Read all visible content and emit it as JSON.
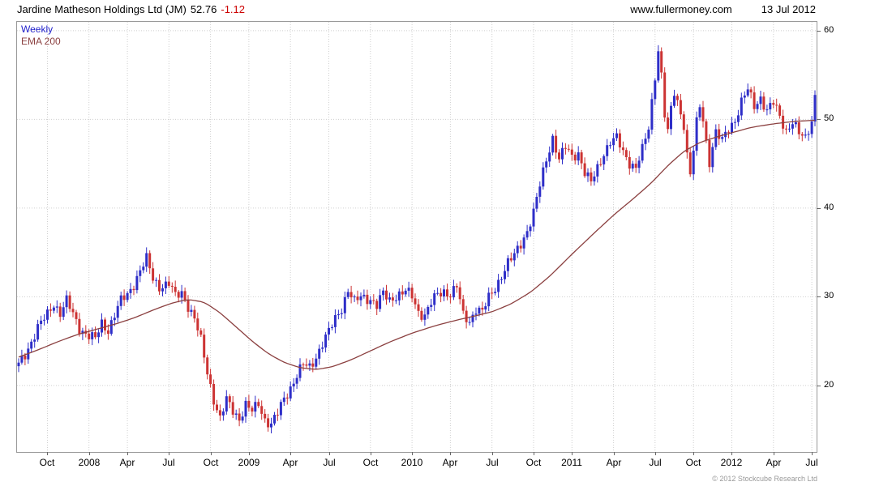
{
  "header": {
    "title": "Jardine Matheson Holdings Ltd (JM)",
    "price": "52.76",
    "change": "-1.12",
    "website": "www.fullermoney.com",
    "date": "13 Jul 2012"
  },
  "legend": {
    "timeframe": "Weekly",
    "ema": "EMA 200"
  },
  "footer": {
    "copyright": "© 2012 Stockcube Research Ltd"
  },
  "chart_data": {
    "type": "candlestick",
    "title": "Jardine Matheson Holdings Ltd (JM) weekly candlestick chart with 200-day EMA",
    "instrument": "Jardine Matheson Holdings Ltd",
    "ticker": "JM",
    "timeframe": "Weekly",
    "last_close": 52.76,
    "change": -1.12,
    "num_weeks": 250,
    "ylim": [
      12.5,
      61
    ],
    "y_ticks": [
      20,
      30,
      40,
      50,
      60
    ],
    "x_ticks": [
      {
        "label": "Oct",
        "week": 9
      },
      {
        "label": "2008",
        "week": 22
      },
      {
        "label": "Apr",
        "week": 34
      },
      {
        "label": "Jul",
        "week": 47
      },
      {
        "label": "Oct",
        "week": 60
      },
      {
        "label": "2009",
        "week": 72
      },
      {
        "label": "Apr",
        "week": 85
      },
      {
        "label": "Jul",
        "week": 97
      },
      {
        "label": "Oct",
        "week": 110
      },
      {
        "label": "2010",
        "week": 123
      },
      {
        "label": "Apr",
        "week": 135
      },
      {
        "label": "Jul",
        "week": 148
      },
      {
        "label": "Oct",
        "week": 161
      },
      {
        "label": "2011",
        "week": 173
      },
      {
        "label": "Apr",
        "week": 186
      },
      {
        "label": "Jul",
        "week": 199
      },
      {
        "label": "Oct",
        "week": 211
      },
      {
        "label": "2012",
        "week": 223
      },
      {
        "label": "Apr",
        "week": 236
      },
      {
        "label": "Jul",
        "week": 248
      }
    ],
    "close_anchors": [
      [
        0,
        22.3
      ],
      [
        2,
        23.5
      ],
      [
        4,
        25.0
      ],
      [
        6,
        26.5
      ],
      [
        9,
        28.0
      ],
      [
        11,
        29.3
      ],
      [
        13,
        28.2
      ],
      [
        15,
        29.5
      ],
      [
        17,
        28.0
      ],
      [
        19,
        26.5
      ],
      [
        22,
        25.6
      ],
      [
        24,
        25.2
      ],
      [
        26,
        27.0
      ],
      [
        28,
        26.3
      ],
      [
        30,
        28.0
      ],
      [
        32,
        29.5
      ],
      [
        34,
        30.2
      ],
      [
        36,
        31.5
      ],
      [
        38,
        33.0
      ],
      [
        40,
        34.2
      ],
      [
        42,
        32.0
      ],
      [
        44,
        31.2
      ],
      [
        47,
        31.5
      ],
      [
        49,
        30.0
      ],
      [
        51,
        30.5
      ],
      [
        53,
        29.0
      ],
      [
        55,
        27.5
      ],
      [
        57,
        25.0
      ],
      [
        59,
        21.5
      ],
      [
        61,
        18.5
      ],
      [
        63,
        16.2
      ],
      [
        65,
        18.3
      ],
      [
        67,
        17.2
      ],
      [
        69,
        16.3
      ],
      [
        71,
        17.8
      ],
      [
        73,
        17.0
      ],
      [
        75,
        18.0
      ],
      [
        77,
        16.2
      ],
      [
        79,
        15.6
      ],
      [
        81,
        16.8
      ],
      [
        83,
        18.5
      ],
      [
        85,
        19.8
      ],
      [
        87,
        21.2
      ],
      [
        89,
        22.3
      ],
      [
        91,
        22.0
      ],
      [
        93,
        23.3
      ],
      [
        95,
        24.8
      ],
      [
        97,
        26.0
      ],
      [
        99,
        27.5
      ],
      [
        101,
        28.8
      ],
      [
        103,
        30.8
      ],
      [
        105,
        29.3
      ],
      [
        107,
        30.0
      ],
      [
        110,
        29.8
      ],
      [
        112,
        29.0
      ],
      [
        114,
        30.3
      ],
      [
        116,
        29.6
      ],
      [
        118,
        30.2
      ],
      [
        121,
        30.6
      ],
      [
        123,
        30.0
      ],
      [
        125,
        28.3
      ],
      [
        127,
        28.0
      ],
      [
        129,
        29.3
      ],
      [
        131,
        30.2
      ],
      [
        133,
        30.6
      ],
      [
        135,
        30.4
      ],
      [
        137,
        31.2
      ],
      [
        139,
        27.8
      ],
      [
        141,
        27.2
      ],
      [
        143,
        28.8
      ],
      [
        145,
        28.3
      ],
      [
        147,
        29.8
      ],
      [
        149,
        31.0
      ],
      [
        151,
        32.5
      ],
      [
        153,
        33.8
      ],
      [
        155,
        34.6
      ],
      [
        157,
        36.0
      ],
      [
        159,
        37.5
      ],
      [
        161,
        39.5
      ],
      [
        163,
        42.5
      ],
      [
        165,
        45.5
      ],
      [
        167,
        48.0
      ],
      [
        169,
        45.5
      ],
      [
        171,
        46.8
      ],
      [
        173,
        45.8
      ],
      [
        175,
        46.3
      ],
      [
        177,
        44.0
      ],
      [
        179,
        42.8
      ],
      [
        181,
        44.5
      ],
      [
        183,
        46.3
      ],
      [
        185,
        47.5
      ],
      [
        187,
        47.8
      ],
      [
        189,
        46.3
      ],
      [
        191,
        45.2
      ],
      [
        193,
        44.6
      ],
      [
        195,
        46.5
      ],
      [
        197,
        49.0
      ],
      [
        198,
        52.0
      ],
      [
        200,
        58.0
      ],
      [
        201,
        55.0
      ],
      [
        202,
        50.5
      ],
      [
        203,
        48.5
      ],
      [
        204,
        51.0
      ],
      [
        205,
        53.0
      ],
      [
        206,
        52.0
      ],
      [
        208,
        49.5
      ],
      [
        209,
        46.0
      ],
      [
        210,
        43.8
      ],
      [
        211,
        46.5
      ],
      [
        212,
        49.5
      ],
      [
        213,
        51.5
      ],
      [
        214,
        50.0
      ],
      [
        215,
        47.5
      ],
      [
        216,
        45.3
      ],
      [
        217,
        47.0
      ],
      [
        218,
        48.5
      ],
      [
        220,
        47.5
      ],
      [
        222,
        49.0
      ],
      [
        224,
        50.0
      ],
      [
        226,
        52.0
      ],
      [
        228,
        53.3
      ],
      [
        230,
        51.5
      ],
      [
        232,
        52.5
      ],
      [
        234,
        51.0
      ],
      [
        236,
        51.8
      ],
      [
        238,
        50.3
      ],
      [
        240,
        48.8
      ],
      [
        242,
        49.8
      ],
      [
        244,
        48.3
      ],
      [
        246,
        47.8
      ],
      [
        248,
        50.0
      ],
      [
        249,
        52.76
      ]
    ],
    "ema_anchors": [
      [
        0,
        23.2
      ],
      [
        6,
        24.0
      ],
      [
        12,
        24.9
      ],
      [
        18,
        25.7
      ],
      [
        24,
        26.3
      ],
      [
        30,
        26.9
      ],
      [
        36,
        27.6
      ],
      [
        42,
        28.5
      ],
      [
        48,
        29.3
      ],
      [
        53,
        29.7
      ],
      [
        58,
        29.4
      ],
      [
        63,
        28.2
      ],
      [
        68,
        26.6
      ],
      [
        73,
        25.0
      ],
      [
        78,
        23.6
      ],
      [
        83,
        22.6
      ],
      [
        88,
        22.0
      ],
      [
        93,
        21.8
      ],
      [
        98,
        22.1
      ],
      [
        104,
        22.9
      ],
      [
        110,
        23.9
      ],
      [
        116,
        24.9
      ],
      [
        123,
        25.9
      ],
      [
        129,
        26.6
      ],
      [
        135,
        27.2
      ],
      [
        141,
        27.7
      ],
      [
        148,
        28.3
      ],
      [
        154,
        29.2
      ],
      [
        160,
        30.5
      ],
      [
        166,
        32.3
      ],
      [
        173,
        34.8
      ],
      [
        180,
        37.2
      ],
      [
        186,
        39.2
      ],
      [
        192,
        41.0
      ],
      [
        198,
        42.9
      ],
      [
        203,
        44.8
      ],
      [
        208,
        46.4
      ],
      [
        213,
        47.4
      ],
      [
        218,
        48.0
      ],
      [
        223,
        48.5
      ],
      [
        229,
        49.1
      ],
      [
        236,
        49.5
      ],
      [
        243,
        49.8
      ],
      [
        249,
        49.9
      ]
    ],
    "colors": {
      "up": "#2e2ec8",
      "down": "#cc3333",
      "ema": "#8b4040",
      "grid": "#cfcfcf",
      "axis": "#666666",
      "change_negative": "#cc0000",
      "timeframe_label": "#2222cc"
    }
  }
}
